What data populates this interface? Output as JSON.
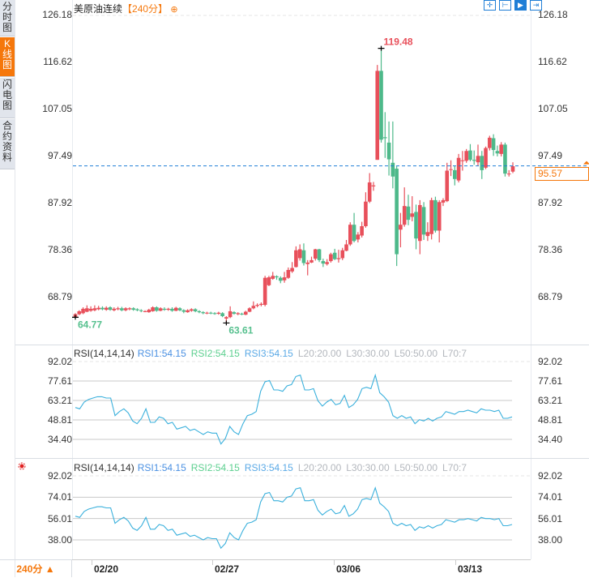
{
  "sidebar": {
    "tabs": [
      {
        "label": "分时图",
        "active": false
      },
      {
        "label": "K线图",
        "active": true
      },
      {
        "label": "闪电图",
        "active": false
      },
      {
        "label": "合约资料",
        "active": false
      }
    ]
  },
  "header": {
    "instrument": "美原油连续",
    "period": "【240分】",
    "add_icon": "⊕"
  },
  "toolbar": {
    "buttons": [
      {
        "name": "crosshair",
        "glyph": "✛",
        "active": false
      },
      {
        "name": "zoom-range",
        "glyph": "⊢",
        "active": false
      },
      {
        "name": "play",
        "glyph": "▶",
        "active": true
      },
      {
        "name": "go-latest",
        "glyph": "⇥",
        "active": false
      }
    ]
  },
  "price_axis": {
    "ticks": [
      "126.18",
      "116.62",
      "107.05",
      "97.49",
      "87.92",
      "78.36",
      "68.79"
    ],
    "current_price": "95.57",
    "high_label": "119.48",
    "low_labels": [
      "64.77",
      "63.61"
    ]
  },
  "rsi_panels": [
    {
      "legend": {
        "name": "RSI(14,14,14)",
        "rsi1": "RSI1:54.15",
        "rsi2": "RSI2:54.15",
        "rsi3": "RSI3:54.15",
        "l20": "L20:20.00",
        "l30": "L30:30.00",
        "l50": "L50:50.00",
        "l70": "L70:7"
      },
      "ticks": [
        "92.02",
        "77.61",
        "63.21",
        "48.81",
        "34.40"
      ]
    },
    {
      "legend": {
        "name": "RSI(14,14,14)",
        "rsi1": "RSI1:54.15",
        "rsi2": "RSI2:54.15",
        "rsi3": "RSI3:54.15",
        "l20": "L20:20.00",
        "l30": "L30:30.00",
        "l50": "L50:50.00",
        "l70": "L70:7"
      },
      "ticks": [
        "92.02",
        "74.01",
        "56.01",
        "38.00"
      ]
    }
  ],
  "x_axis": {
    "ticks": [
      "02/20",
      "02/27",
      "03/06",
      "03/13"
    ]
  },
  "period_selector": {
    "label": "240分 ▲"
  },
  "colors": {
    "up": "#e8505b",
    "down": "#4db98a",
    "accent": "#f5770b",
    "rsi_line": "#3ab0dc",
    "current_line": "#1f7ed6"
  },
  "chart_data": {
    "type": "candlestick",
    "title": "美原油连续【240分】",
    "ylim": [
      60,
      126.18
    ],
    "x_ticks": [
      "02/20",
      "02/27",
      "03/06",
      "03/13"
    ],
    "annotations": {
      "high": 119.48,
      "lows": [
        64.77,
        63.61
      ],
      "last": 95.57
    },
    "candles": [
      [
        64.8,
        65.4,
        65.6,
        64.77
      ],
      [
        65.4,
        66.0,
        66.2,
        65.2
      ],
      [
        65.6,
        66.5,
        66.8,
        65.4
      ],
      [
        65.9,
        66.6,
        67.2,
        65.8
      ],
      [
        66.1,
        66.5,
        67.0,
        65.9
      ],
      [
        66.2,
        66.6,
        67.2,
        66.0
      ],
      [
        66.4,
        66.7,
        67.1,
        66.2
      ],
      [
        66.7,
        66.4,
        67.0,
        66.2
      ],
      [
        66.3,
        66.7,
        67.0,
        66.1
      ],
      [
        66.8,
        66.3,
        67.0,
        66.1
      ],
      [
        66.2,
        66.5,
        66.8,
        66.0
      ],
      [
        66.4,
        66.6,
        66.9,
        66.2
      ],
      [
        66.6,
        66.2,
        66.9,
        66.0
      ],
      [
        66.2,
        66.6,
        66.8,
        66.0
      ],
      [
        66.4,
        66.6,
        66.8,
        66.2
      ],
      [
        66.6,
        66.3,
        66.8,
        66.1
      ],
      [
        66.4,
        66.2,
        66.6,
        66.0
      ],
      [
        66.2,
        66.1,
        66.4,
        65.8
      ],
      [
        66.0,
        66.0,
        66.2,
        65.8
      ],
      [
        65.8,
        66.3,
        66.5,
        65.7
      ],
      [
        66.0,
        66.8,
        67.0,
        65.9
      ],
      [
        66.8,
        66.1,
        67.0,
        65.9
      ],
      [
        66.1,
        66.6,
        66.8,
        66.0
      ],
      [
        66.5,
        66.3,
        66.8,
        66.1
      ],
      [
        66.3,
        66.5,
        66.7,
        66.1
      ],
      [
        66.5,
        66.1,
        66.8,
        65.9
      ],
      [
        66.1,
        66.7,
        66.9,
        66.0
      ],
      [
        66.6,
        66.2,
        66.8,
        66.0
      ],
      [
        66.2,
        65.9,
        66.4,
        65.6
      ],
      [
        65.8,
        66.2,
        66.4,
        65.7
      ],
      [
        66.1,
        66.4,
        66.6,
        65.9
      ],
      [
        66.4,
        66.0,
        66.6,
        65.8
      ],
      [
        66.0,
        65.8,
        66.2,
        65.6
      ],
      [
        65.8,
        65.6,
        66.0,
        65.4
      ],
      [
        65.6,
        65.7,
        65.9,
        65.4
      ],
      [
        65.7,
        65.6,
        65.9,
        65.4
      ],
      [
        65.6,
        65.5,
        65.8,
        65.3
      ],
      [
        65.5,
        65.7,
        65.9,
        65.3
      ],
      [
        65.6,
        65.0,
        65.8,
        64.8
      ],
      [
        64.5,
        64.8,
        65.0,
        63.61
      ],
      [
        64.8,
        66.0,
        67.0,
        64.6
      ],
      [
        65.8,
        65.5,
        66.0,
        65.3
      ],
      [
        65.4,
        65.6,
        65.8,
        65.2
      ],
      [
        65.5,
        65.4,
        65.7,
        65.2
      ],
      [
        65.3,
        65.9,
        66.1,
        65.2
      ],
      [
        65.9,
        66.6,
        66.8,
        65.8
      ],
      [
        66.6,
        67.1,
        68.0,
        66.4
      ],
      [
        67.1,
        67.3,
        67.6,
        66.8
      ],
      [
        67.3,
        67.5,
        67.8,
        67.0
      ],
      [
        67.3,
        72.8,
        73.2,
        67.0
      ],
      [
        71.3,
        72.9,
        73.2,
        71.1
      ],
      [
        72.6,
        73.2,
        74.0,
        72.4
      ],
      [
        73.1,
        72.9,
        73.3,
        72.4
      ],
      [
        72.8,
        72.2,
        73.1,
        71.7
      ],
      [
        72.3,
        72.9,
        74.0,
        71.8
      ],
      [
        72.8,
        74.4,
        74.9,
        72.6
      ],
      [
        74.1,
        74.8,
        76.0,
        73.8
      ],
      [
        75.0,
        78.4,
        79.2,
        74.9
      ],
      [
        76.8,
        78.6,
        79.6,
        76.3
      ],
      [
        78.4,
        75.8,
        79.8,
        75.3
      ],
      [
        75.6,
        75.9,
        76.4,
        73.3
      ],
      [
        75.9,
        76.4,
        77.1,
        75.8
      ],
      [
        76.7,
        78.6,
        78.7,
        76.3
      ],
      [
        78.6,
        76.4,
        78.7,
        76.0
      ],
      [
        76.2,
        75.7,
        76.7,
        75.0
      ],
      [
        75.6,
        76.0,
        76.6,
        75.3
      ],
      [
        76.2,
        77.6,
        77.9,
        75.9
      ],
      [
        77.9,
        76.6,
        78.7,
        76.4
      ],
      [
        76.6,
        76.8,
        78.5,
        75.9
      ],
      [
        76.8,
        78.4,
        78.9,
        76.4
      ],
      [
        78.3,
        79.6,
        80.5,
        78.2
      ],
      [
        79.6,
        83.6,
        84.1,
        79.3
      ],
      [
        83.6,
        80.3,
        86.0,
        80.0
      ],
      [
        80.6,
        81.6,
        82.1,
        80.0
      ],
      [
        81.4,
        83.3,
        84.2,
        81.0
      ],
      [
        83.3,
        88.3,
        90.2,
        83.0
      ],
      [
        88.3,
        92.2,
        94.1,
        88.0
      ],
      [
        91.4,
        91.6,
        92.3,
        90.5
      ],
      [
        96.8,
        114.9,
        116.1,
        96.8
      ],
      [
        114.9,
        100.9,
        119.48,
        100.3
      ],
      [
        101.4,
        101.2,
        106.5,
        97.2
      ],
      [
        100.3,
        96.9,
        104.6,
        93.6
      ],
      [
        96.2,
        93.4,
        104.6,
        91.0
      ],
      [
        95.0,
        77.6,
        95.5,
        75.2
      ],
      [
        82.6,
        83.6,
        86.0,
        79.0
      ],
      [
        83.6,
        87.4,
        91.2,
        83.2
      ],
      [
        87.3,
        84.6,
        89.7,
        83.5
      ],
      [
        85.2,
        85.9,
        89.4,
        84.3
      ],
      [
        86.2,
        80.8,
        87.7,
        78.6
      ],
      [
        80.3,
        87.6,
        88.6,
        77.6
      ],
      [
        87.2,
        81.6,
        88.2,
        80.5
      ],
      [
        81.3,
        82.1,
        84.1,
        80.3
      ],
      [
        81.7,
        88.6,
        89.1,
        80.6
      ],
      [
        88.6,
        82.4,
        89.3,
        82.0
      ],
      [
        82.4,
        88.2,
        88.6,
        80.0
      ],
      [
        88.1,
        88.6,
        89.0,
        87.4
      ],
      [
        88.4,
        94.6,
        96.2,
        88.2
      ],
      [
        94.8,
        94.9,
        96.7,
        93.5
      ],
      [
        94.7,
        92.9,
        95.6,
        91.6
      ],
      [
        92.6,
        97.2,
        98.0,
        92.2
      ],
      [
        96.6,
        96.7,
        98.6,
        94.6
      ],
      [
        96.6,
        98.6,
        99.0,
        96.2
      ],
      [
        98.7,
        96.8,
        100.0,
        96.5
      ],
      [
        96.8,
        96.6,
        98.7,
        95.8
      ],
      [
        96.3,
        97.6,
        99.9,
        95.6
      ],
      [
        97.6,
        94.7,
        98.6,
        92.9
      ],
      [
        95.2,
        99.2,
        99.5,
        94.9
      ],
      [
        99.2,
        101.3,
        101.7,
        98.7
      ],
      [
        101.2,
        98.8,
        102.0,
        97.6
      ],
      [
        98.6,
        98.1,
        99.7,
        97.5
      ],
      [
        98.0,
        99.9,
        100.4,
        97.5
      ],
      [
        99.9,
        94.0,
        100.3,
        93.4
      ],
      [
        93.9,
        94.0,
        94.7,
        93.4
      ],
      [
        94.4,
        95.5,
        96.3,
        94.1
      ]
    ],
    "rsi": [
      58,
      57,
      62,
      64,
      65,
      66,
      66,
      65,
      65,
      52,
      55,
      57,
      54,
      48,
      46,
      50,
      57,
      47,
      47,
      51,
      50,
      46,
      47,
      42,
      43,
      44,
      41,
      42,
      40,
      38,
      40,
      39,
      39,
      31,
      35,
      44,
      40,
      38,
      46,
      52,
      53,
      55,
      70,
      77,
      78,
      71,
      71,
      70,
      74,
      75,
      81,
      82,
      71,
      71,
      72,
      63,
      59,
      62,
      64,
      60,
      61,
      67,
      58,
      60,
      64,
      72,
      73,
      72,
      82,
      69,
      66,
      62,
      52,
      50,
      52,
      50,
      51,
      46,
      49,
      48,
      50,
      48,
      50,
      51,
      55,
      54,
      53,
      55,
      55,
      56,
      55,
      54,
      57,
      56,
      56,
      55,
      56,
      50,
      50,
      51
    ]
  }
}
